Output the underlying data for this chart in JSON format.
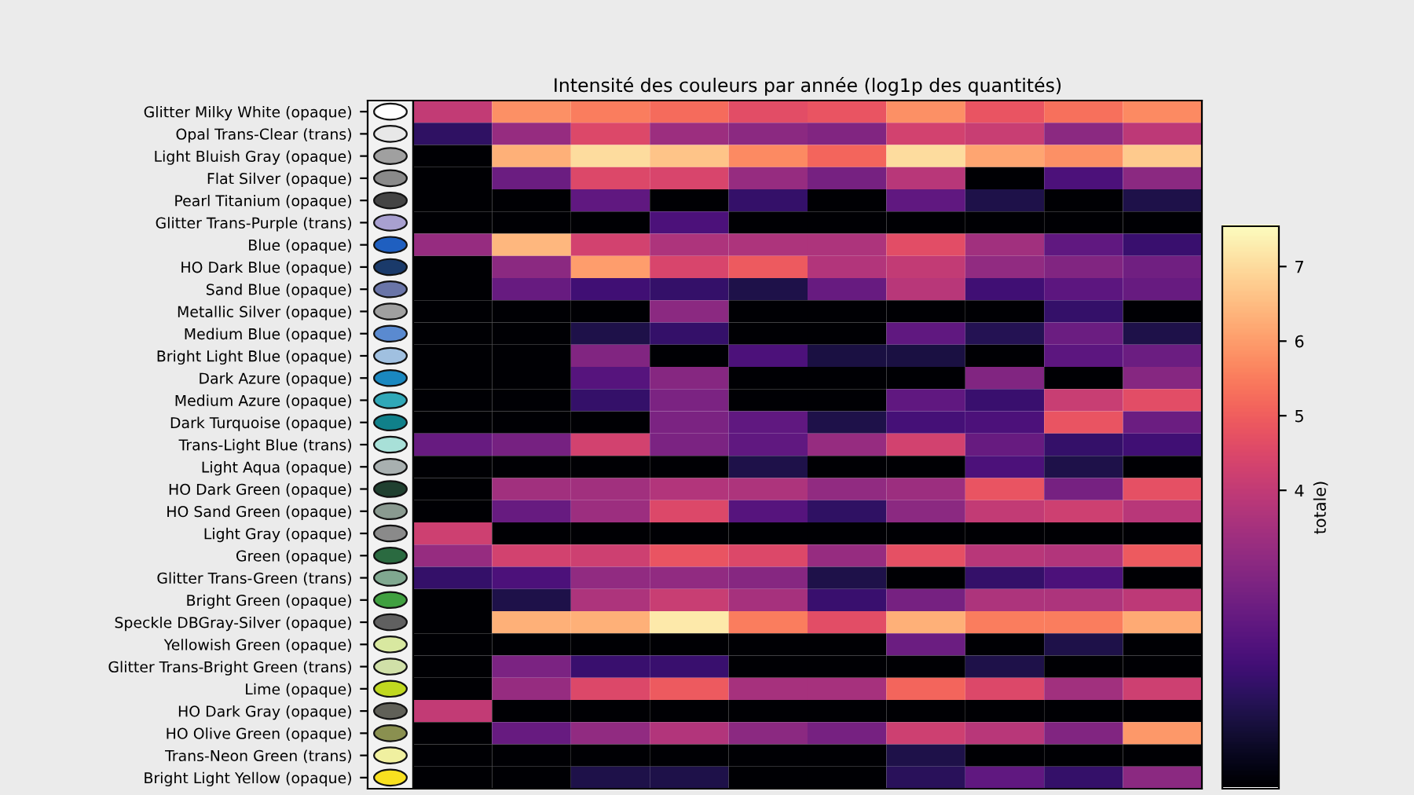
{
  "chart_data": {
    "type": "heatmap",
    "title": "Intensité des couleurs par année (log1p des quantités)",
    "categories": [
      null,
      null,
      null,
      null,
      null,
      null,
      null,
      null,
      null,
      null
    ],
    "y_categories": [
      "Glitter Milky White (opaque)",
      "Opal Trans-Clear (trans)",
      "Light Bluish Gray (opaque)",
      "Flat Silver (opaque)",
      "Pearl Titanium (opaque)",
      "Glitter Trans-Purple (trans)",
      "Blue (opaque)",
      "HO Dark Blue (opaque)",
      "Sand Blue (opaque)",
      "Metallic Silver (opaque)",
      "Medium Blue (opaque)",
      "Bright Light Blue (opaque)",
      "Dark Azure (opaque)",
      "Medium Azure (opaque)",
      "Dark Turquoise (opaque)",
      "Trans-Light Blue (trans)",
      "Light Aqua (opaque)",
      "HO Dark Green (opaque)",
      "HO Sand Green (opaque)",
      "Light Gray (opaque)",
      "Green (opaque)",
      "Glitter Trans-Green (trans)",
      "Bright Green (opaque)",
      "Speckle DBGray-Silver (opaque)",
      "Yellowish Green (opaque)",
      "Glitter Trans-Bright Green (trans)",
      "Lime (opaque)",
      "HO Dark Gray (opaque)",
      "HO Olive Green (opaque)",
      "Trans-Neon Green (trans)",
      "Bright Light Yellow (opaque)"
    ],
    "cells": [
      [
        4.0,
        5.8,
        5.5,
        5.2,
        4.6,
        4.8,
        5.8,
        4.8,
        5.3,
        5.7
      ],
      [
        1.3,
        3.2,
        4.5,
        3.3,
        3.0,
        2.8,
        4.3,
        4.1,
        3.0,
        3.9
      ],
      [
        0,
        6.3,
        7.0,
        6.6,
        5.7,
        5.1,
        7.0,
        6.1,
        5.8,
        6.7
      ],
      [
        0,
        2.4,
        4.5,
        4.4,
        3.2,
        2.6,
        3.8,
        0,
        1.8,
        3.0
      ],
      [
        0,
        0,
        2.2,
        0,
        1.4,
        0,
        2.2,
        1.0,
        0,
        1.0
      ],
      [
        0,
        0,
        0,
        1.8,
        0,
        0,
        0,
        0,
        0,
        0
      ],
      [
        3.2,
        6.4,
        4.3,
        3.6,
        3.6,
        3.6,
        4.6,
        3.4,
        2.2,
        1.5
      ],
      [
        0,
        3.0,
        6.0,
        4.4,
        4.9,
        3.7,
        4.0,
        3.1,
        2.8,
        2.5
      ],
      [
        0,
        2.3,
        1.6,
        1.4,
        1.0,
        2.3,
        3.8,
        1.6,
        2.1,
        2.3
      ],
      [
        0,
        0,
        0,
        3.0,
        0,
        0,
        0,
        0,
        1.4,
        0
      ],
      [
        0,
        0,
        1.0,
        1.4,
        0,
        0,
        2.2,
        1.1,
        2.4,
        1.0
      ],
      [
        0,
        0,
        2.8,
        0,
        1.8,
        0.9,
        0.9,
        0,
        2.1,
        2.4
      ],
      [
        0,
        0,
        2.0,
        2.9,
        0,
        0,
        0,
        2.8,
        0,
        2.9
      ],
      [
        0,
        0,
        1.4,
        2.7,
        0,
        0,
        2.2,
        1.5,
        4.1,
        4.6
      ],
      [
        0,
        0,
        0,
        2.7,
        2.2,
        1.0,
        1.7,
        1.8,
        4.8,
        2.4
      ],
      [
        2.3,
        2.6,
        4.3,
        2.7,
        2.2,
        3.2,
        4.3,
        2.3,
        1.4,
        1.6
      ],
      [
        0,
        0,
        0,
        0,
        1.0,
        0,
        0,
        1.8,
        1.0,
        0
      ],
      [
        0,
        3.4,
        3.4,
        3.7,
        3.6,
        3.1,
        3.3,
        4.8,
        2.6,
        4.7
      ],
      [
        0,
        2.3,
        3.3,
        4.5,
        2.0,
        1.3,
        3.0,
        4.0,
        4.2,
        3.8
      ],
      [
        4.2,
        0,
        0,
        0,
        0,
        0,
        0,
        0,
        0,
        0
      ],
      [
        3.2,
        4.3,
        4.2,
        4.8,
        4.5,
        3.2,
        4.7,
        3.8,
        3.7,
        4.9
      ],
      [
        1.4,
        1.8,
        3.1,
        3.1,
        2.9,
        1.0,
        0,
        1.4,
        1.8,
        0
      ],
      [
        0,
        1.0,
        3.6,
        4.1,
        3.5,
        1.5,
        2.6,
        3.6,
        3.6,
        3.9
      ],
      [
        0,
        6.3,
        6.3,
        7.2,
        5.5,
        4.6,
        6.3,
        5.5,
        5.5,
        6.2
      ],
      [
        0,
        0,
        0,
        0,
        0,
        0,
        2.4,
        0,
        1.0,
        0
      ],
      [
        0,
        2.7,
        1.5,
        1.5,
        0,
        0,
        0,
        1.0,
        0,
        0
      ],
      [
        0,
        3.2,
        4.5,
        4.9,
        3.5,
        3.5,
        5.1,
        4.5,
        3.4,
        4.2
      ],
      [
        4.0,
        0,
        0,
        0,
        0,
        0,
        0,
        0,
        0,
        0
      ],
      [
        0,
        2.3,
        3.1,
        3.7,
        3.0,
        2.6,
        4.2,
        3.8,
        2.8,
        5.9
      ],
      [
        0,
        0,
        0,
        0,
        0,
        0,
        1.0,
        0,
        0,
        0
      ],
      [
        0,
        0,
        1.0,
        1.0,
        0,
        0,
        1.2,
        2.2,
        1.4,
        3.0
      ]
    ],
    "clim": [
      0,
      7.54
    ],
    "cticks": [
      4,
      5,
      6,
      7
    ],
    "clabel": "totale)"
  }
}
